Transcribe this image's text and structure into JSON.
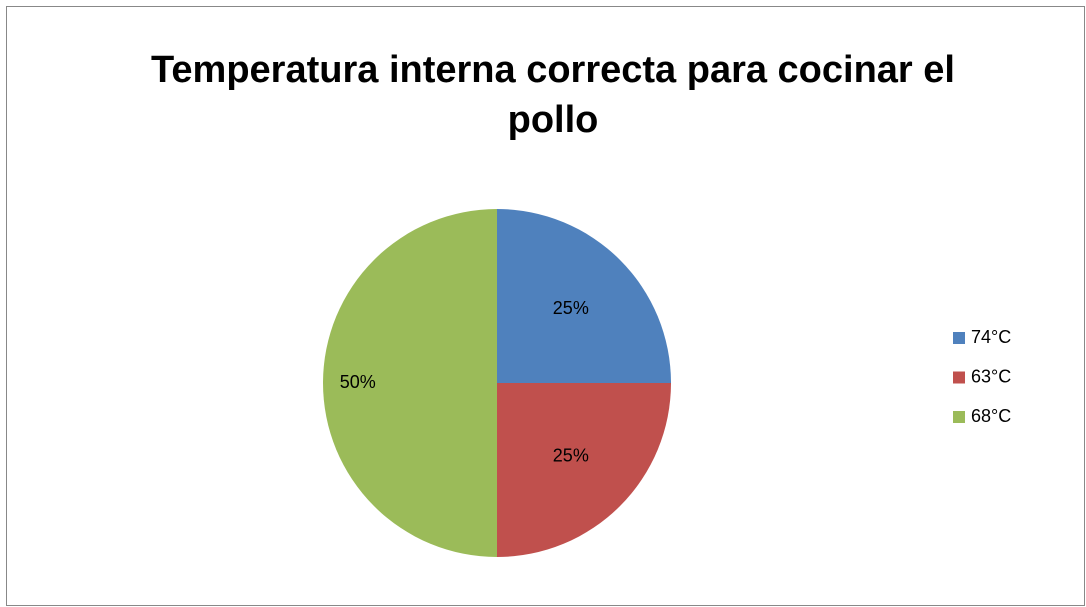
{
  "chart_data": {
    "type": "pie",
    "title": "Temperatura interna correcta para cocinar el pollo",
    "categories": [
      "74°C",
      "63°C",
      "68°C"
    ],
    "values": [
      25,
      25,
      50
    ],
    "value_labels": [
      "25%",
      "25%",
      "50%"
    ],
    "colors": [
      "#4f81bd",
      "#c0504d",
      "#9bbb59"
    ],
    "legend": "right"
  }
}
